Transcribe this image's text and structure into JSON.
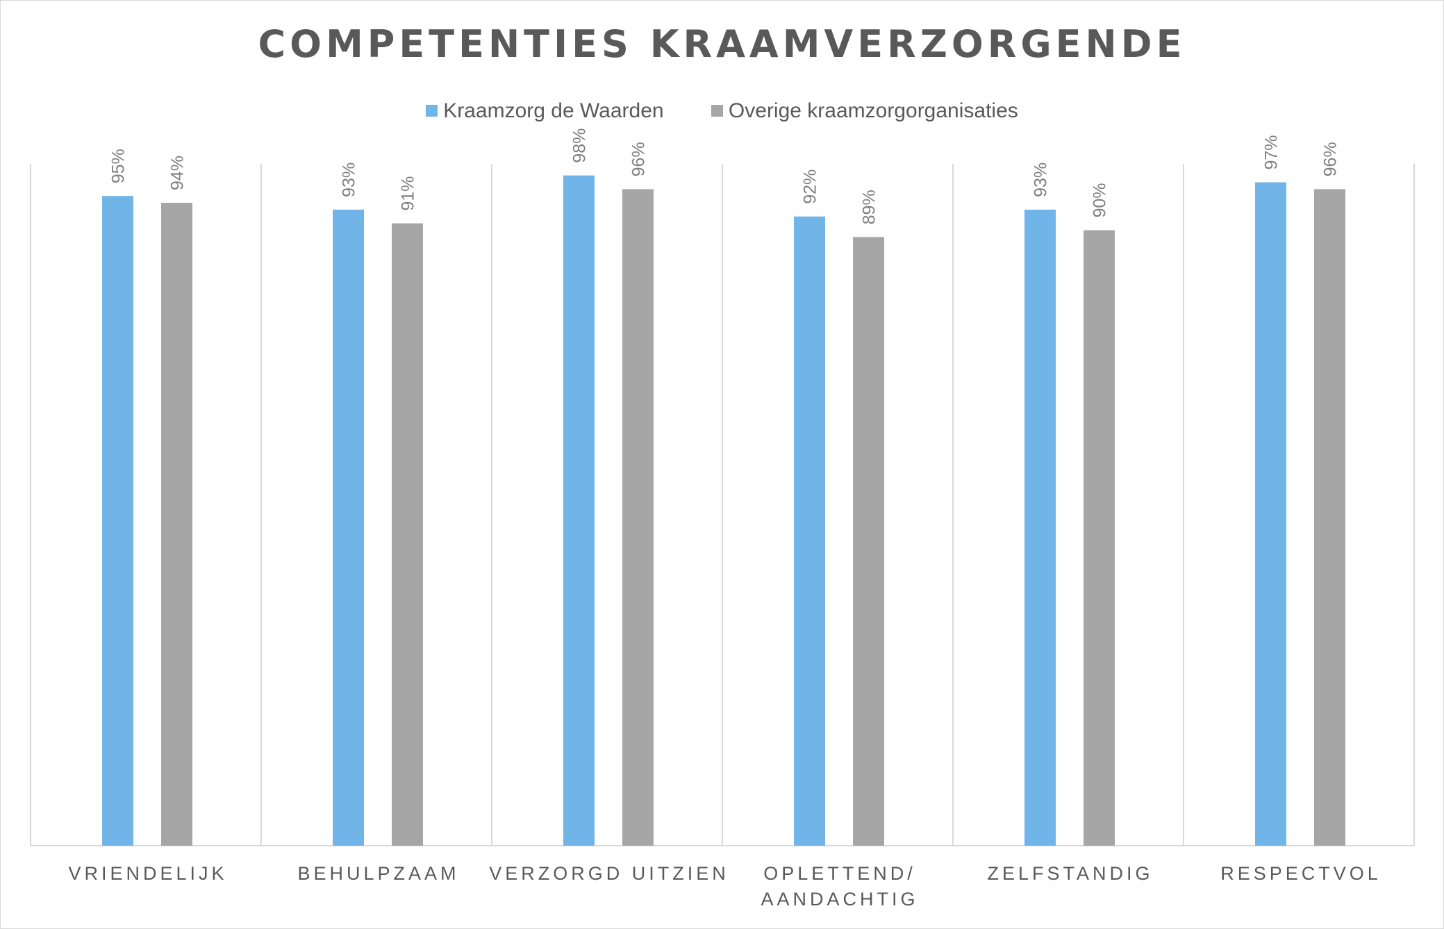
{
  "chart_data": {
    "type": "bar",
    "title": "COMPETENTIES KRAAMVERZORGENDE",
    "categories": [
      [
        "VRIENDELIJK"
      ],
      [
        "BEHULPZAAM"
      ],
      [
        "VERZORGD UITZIEN"
      ],
      [
        "OPLETTEND/",
        "AANDACHTIG"
      ],
      [
        "ZELFSTANDIG"
      ],
      [
        "RESPECTVOL"
      ]
    ],
    "series": [
      {
        "name": "Kraamzorg de Waarden",
        "color": "#70b4e8",
        "values": [
          95,
          93,
          98,
          92,
          93,
          97
        ],
        "labels": [
          "95%",
          "93%",
          "98%",
          "92%",
          "93%",
          "97%"
        ]
      },
      {
        "name": "Overige kraamzorgorganisaties",
        "color": "#a6a6a6",
        "values": [
          94,
          91,
          96,
          89,
          90,
          96
        ],
        "labels": [
          "94%",
          "91%",
          "96%",
          "89%",
          "90%",
          "96%"
        ]
      }
    ],
    "ylim": [
      0,
      100
    ],
    "legend_position": "top",
    "grid": false,
    "value_axis_visible": false
  }
}
